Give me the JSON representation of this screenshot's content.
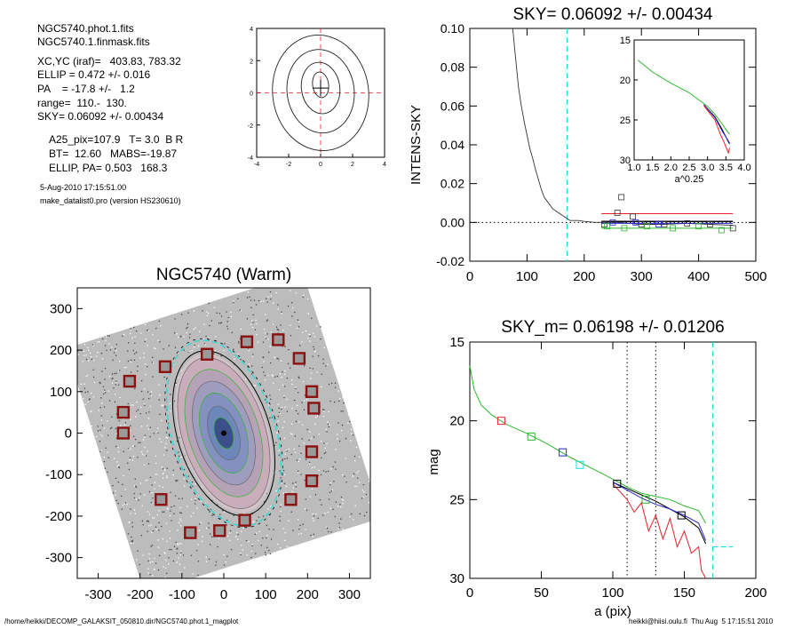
{
  "info": {
    "lines": [
      "NGC5740.phot.1.fits",
      "NGC5740.1.finmask.fits",
      "XC,YC (iraf)=   403.83, 783.32",
      "ELLIP = 0.472 +/- 0.016",
      "PA    = -17.8 +/-   1.2",
      "range=  110.-  130.",
      "SKY= 0.06092 +/- 0.00434"
    ],
    "lines2": [
      "A25_pix=107.9   T= 3.0  B R",
      "BT=  12.60   MABS=-19.87",
      "ELLIP, PA= 0.503   168.3"
    ],
    "date": "5-Aug-2010 17:15:51.00",
    "program": "make_datalist0.pro (version HS230610)"
  },
  "footer": {
    "path": "/home/heikki/DECOMP_GALAKSIT_050810.dir/NGC5740.phot.1_magplot",
    "user": "heikki@hiisi.oulu.fi  Thu Aug  5 17:15:51 2010"
  },
  "colors": {
    "red": "#e8202a",
    "green": "#2db82d",
    "blue": "#2a2ad0",
    "cyan": "#22dddd",
    "black": "#000000",
    "maskbox": "#8b1010"
  },
  "chart_data": [
    {
      "id": "contour",
      "type": "contour",
      "title": "",
      "xlim": [
        -4,
        4
      ],
      "ylim": [
        -4,
        4
      ],
      "xticks": [
        "-4",
        "-2",
        "0",
        "2",
        "4"
      ],
      "yticks": [
        "4",
        "2",
        "0",
        "-2",
        "-4"
      ],
      "contours": [
        {
          "cx": 0.0,
          "cy": 0.0,
          "a": 3.0,
          "b": 3.6
        },
        {
          "cx": 0.0,
          "cy": 0.1,
          "a": 2.1,
          "b": 2.6
        },
        {
          "cx": 0.0,
          "cy": 0.3,
          "a": 1.2,
          "b": 1.6
        },
        {
          "cx": 0.0,
          "cy": 0.5,
          "a": 0.5,
          "b": 0.8
        }
      ],
      "crosshair": [
        0,
        0
      ]
    },
    {
      "id": "sky",
      "type": "line",
      "title": "SKY= 0.06092 +/- 0.00434",
      "xlabel": "",
      "ylabel": "INTENS-SKY",
      "xlim": [
        0,
        500
      ],
      "ylim": [
        -0.02,
        0.1
      ],
      "xticks": [
        0,
        100,
        200,
        300,
        400,
        500
      ],
      "yticks": [
        -0.02,
        0.0,
        0.02,
        0.04,
        0.06,
        0.08,
        0.1
      ],
      "ytick_labels": [
        "-0.02",
        "0.00",
        "0.02",
        "0.04",
        "0.06",
        "0.08",
        "0.10"
      ],
      "profile": [
        [
          75,
          0.1
        ],
        [
          80,
          0.085
        ],
        [
          85,
          0.07
        ],
        [
          90,
          0.06
        ],
        [
          95,
          0.052
        ],
        [
          100,
          0.045
        ],
        [
          105,
          0.038
        ],
        [
          110,
          0.033
        ],
        [
          115,
          0.027
        ],
        [
          120,
          0.022
        ],
        [
          125,
          0.017
        ],
        [
          130,
          0.013
        ],
        [
          135,
          0.011
        ],
        [
          140,
          0.009
        ],
        [
          145,
          0.007
        ],
        [
          150,
          0.006
        ],
        [
          155,
          0.005
        ],
        [
          160,
          0.004
        ],
        [
          165,
          0.003
        ],
        [
          170,
          0.002
        ],
        [
          175,
          0.001
        ],
        [
          180,
          0.001
        ],
        [
          190,
          0.001
        ],
        [
          200,
          0.0005
        ],
        [
          220,
          0.0
        ],
        [
          260,
          0.0
        ],
        [
          300,
          -0.001
        ],
        [
          340,
          -0.001
        ],
        [
          380,
          -0.0005
        ],
        [
          420,
          -0.001
        ],
        [
          460,
          -0.0015
        ]
      ],
      "cyan_vline": 170,
      "hlines": [
        {
          "color": "red",
          "y": 0.0045,
          "x0": 230,
          "x1": 460
        },
        {
          "color": "black",
          "y": 0.0005,
          "x0": 230,
          "x1": 460
        },
        {
          "color": "blue",
          "y": -0.0005,
          "x0": 230,
          "x1": 460
        },
        {
          "color": "green",
          "y": -0.003,
          "x0": 230,
          "x1": 460
        }
      ],
      "squares_black": [
        [
          235,
          -0.001
        ],
        [
          258,
          0.005
        ],
        [
          265,
          0.013
        ],
        [
          285,
          0.003
        ],
        [
          300,
          -0.001
        ],
        [
          340,
          -0.001
        ],
        [
          380,
          -0.0005
        ],
        [
          420,
          -0.001
        ],
        [
          460,
          -0.003
        ]
      ],
      "squares_green": [
        [
          240,
          -0.002
        ],
        [
          270,
          -0.003
        ],
        [
          310,
          -0.002
        ],
        [
          355,
          -0.003
        ],
        [
          400,
          -0.002
        ],
        [
          440,
          -0.004
        ]
      ],
      "squares_blue": [
        [
          250,
          0.0
        ],
        [
          290,
          0.0
        ],
        [
          330,
          -0.001
        ]
      ],
      "inset": {
        "xlabel": "a^0.25",
        "xlim": [
          1.0,
          4.0
        ],
        "ylim": [
          15,
          30
        ],
        "xtick_labels": [
          "1.0",
          "1.5",
          "2.0",
          "2.5",
          "3.0",
          "3.5",
          "4.0"
        ],
        "ytick_labels": [
          "15",
          "20",
          "25",
          "30"
        ],
        "green": [
          [
            1.1,
            17.5
          ],
          [
            1.5,
            19.0
          ],
          [
            2.0,
            20.4
          ],
          [
            2.5,
            21.6
          ],
          [
            3.0,
            23.3
          ],
          [
            3.2,
            24.3
          ],
          [
            3.4,
            25.5
          ],
          [
            3.5,
            26.2
          ],
          [
            3.6,
            26.8
          ]
        ],
        "black": [
          [
            2.9,
            23.1
          ],
          [
            3.2,
            24.6
          ],
          [
            3.4,
            26.2
          ],
          [
            3.55,
            27.6
          ],
          [
            3.6,
            28.0
          ]
        ],
        "blue": [
          [
            2.9,
            23.1
          ],
          [
            3.2,
            24.7
          ],
          [
            3.4,
            26.4
          ],
          [
            3.55,
            27.5
          ],
          [
            3.6,
            27.9
          ]
        ],
        "red": [
          [
            2.9,
            23.2
          ],
          [
            3.2,
            25.0
          ],
          [
            3.35,
            26.8
          ],
          [
            3.45,
            27.8
          ],
          [
            3.52,
            28.6
          ],
          [
            3.57,
            29.1
          ],
          [
            3.6,
            28.5
          ]
        ]
      }
    },
    {
      "id": "image",
      "type": "image",
      "title": "NGC5740 (Warm)",
      "xlim": [
        -350,
        350
      ],
      "ylim": [
        -350,
        350
      ],
      "xticks": [
        -300,
        -200,
        -100,
        0,
        100,
        200,
        300
      ],
      "yticks": [
        -300,
        -200,
        -100,
        0,
        100,
        200,
        300
      ],
      "galaxy_pa": -17.8,
      "ellipse_rings": [
        [
          30,
          57
        ],
        [
          45,
          85
        ],
        [
          58,
          110
        ],
        [
          72,
          135
        ],
        [
          85,
          160
        ]
      ],
      "mask_boxes": [
        [
          -225,
          125
        ],
        [
          -240,
          50
        ],
        [
          -240,
          0
        ],
        [
          -140,
          160
        ],
        [
          -40,
          190
        ],
        [
          -150,
          -160
        ],
        [
          -80,
          -240
        ],
        [
          -10,
          -235
        ],
        [
          50,
          -210
        ],
        [
          160,
          -160
        ],
        [
          210,
          -115
        ],
        [
          210,
          -45
        ],
        [
          215,
          60
        ],
        [
          210,
          100
        ],
        [
          180,
          180
        ],
        [
          130,
          225
        ],
        [
          55,
          220
        ]
      ]
    },
    {
      "id": "mag",
      "type": "line",
      "title": "SKY_m=  0.06198 +/- 0.01206",
      "xlabel": "a (pix)",
      "ylabel": "mag",
      "xlim": [
        0,
        200
      ],
      "ylim": [
        30,
        15
      ],
      "xticks": [
        0,
        50,
        100,
        150,
        200
      ],
      "yticks": [
        15,
        20,
        25,
        30
      ],
      "green": [
        [
          0,
          16.5
        ],
        [
          3,
          18.0
        ],
        [
          8,
          19.0
        ],
        [
          15,
          19.6
        ],
        [
          25,
          20.2
        ],
        [
          40,
          20.8
        ],
        [
          55,
          21.5
        ],
        [
          70,
          22.3
        ],
        [
          85,
          23.0
        ],
        [
          100,
          23.7
        ],
        [
          110,
          24.2
        ],
        [
          120,
          24.6
        ],
        [
          130,
          24.8
        ],
        [
          140,
          25.0
        ],
        [
          150,
          25.4
        ],
        [
          160,
          25.7
        ],
        [
          165,
          26.5
        ]
      ],
      "black": [
        [
          100,
          23.9
        ],
        [
          110,
          24.3
        ],
        [
          120,
          24.7
        ],
        [
          130,
          25.1
        ],
        [
          140,
          25.6
        ],
        [
          150,
          26.1
        ],
        [
          160,
          26.8
        ],
        [
          165,
          27.8
        ]
      ],
      "blue": [
        [
          100,
          23.9
        ],
        [
          110,
          24.4
        ],
        [
          120,
          24.9
        ],
        [
          130,
          25.3
        ],
        [
          140,
          25.6
        ],
        [
          150,
          26.0
        ],
        [
          160,
          26.5
        ],
        [
          165,
          27.6
        ]
      ],
      "red": [
        [
          100,
          24.0
        ],
        [
          110,
          25.0
        ],
        [
          115,
          25.8
        ],
        [
          120,
          25.2
        ],
        [
          125,
          27.0
        ],
        [
          130,
          26.0
        ],
        [
          135,
          27.5
        ],
        [
          140,
          26.2
        ],
        [
          145,
          28.0
        ],
        [
          150,
          27.0
        ],
        [
          155,
          28.4
        ],
        [
          160,
          28.0
        ],
        [
          162,
          29.5
        ],
        [
          165,
          30.0
        ]
      ],
      "squares": [
        {
          "x": 22,
          "y": 20.0,
          "c": "red"
        },
        {
          "x": 43,
          "y": 21.0,
          "c": "green"
        },
        {
          "x": 65,
          "y": 22.0,
          "c": "blue"
        },
        {
          "x": 77,
          "y": 22.8,
          "c": "cyan"
        },
        {
          "x": 103,
          "y": 24.0,
          "c": "black"
        },
        {
          "x": 123,
          "y": 25.0,
          "c": "green"
        },
        {
          "x": 148,
          "y": 26.0,
          "c": "black"
        }
      ],
      "dotted_vlines": [
        110,
        130
      ],
      "cyan_vline": 170,
      "cyan_tick": {
        "x0": 170,
        "x1": 184,
        "y": 28.0
      }
    }
  ]
}
